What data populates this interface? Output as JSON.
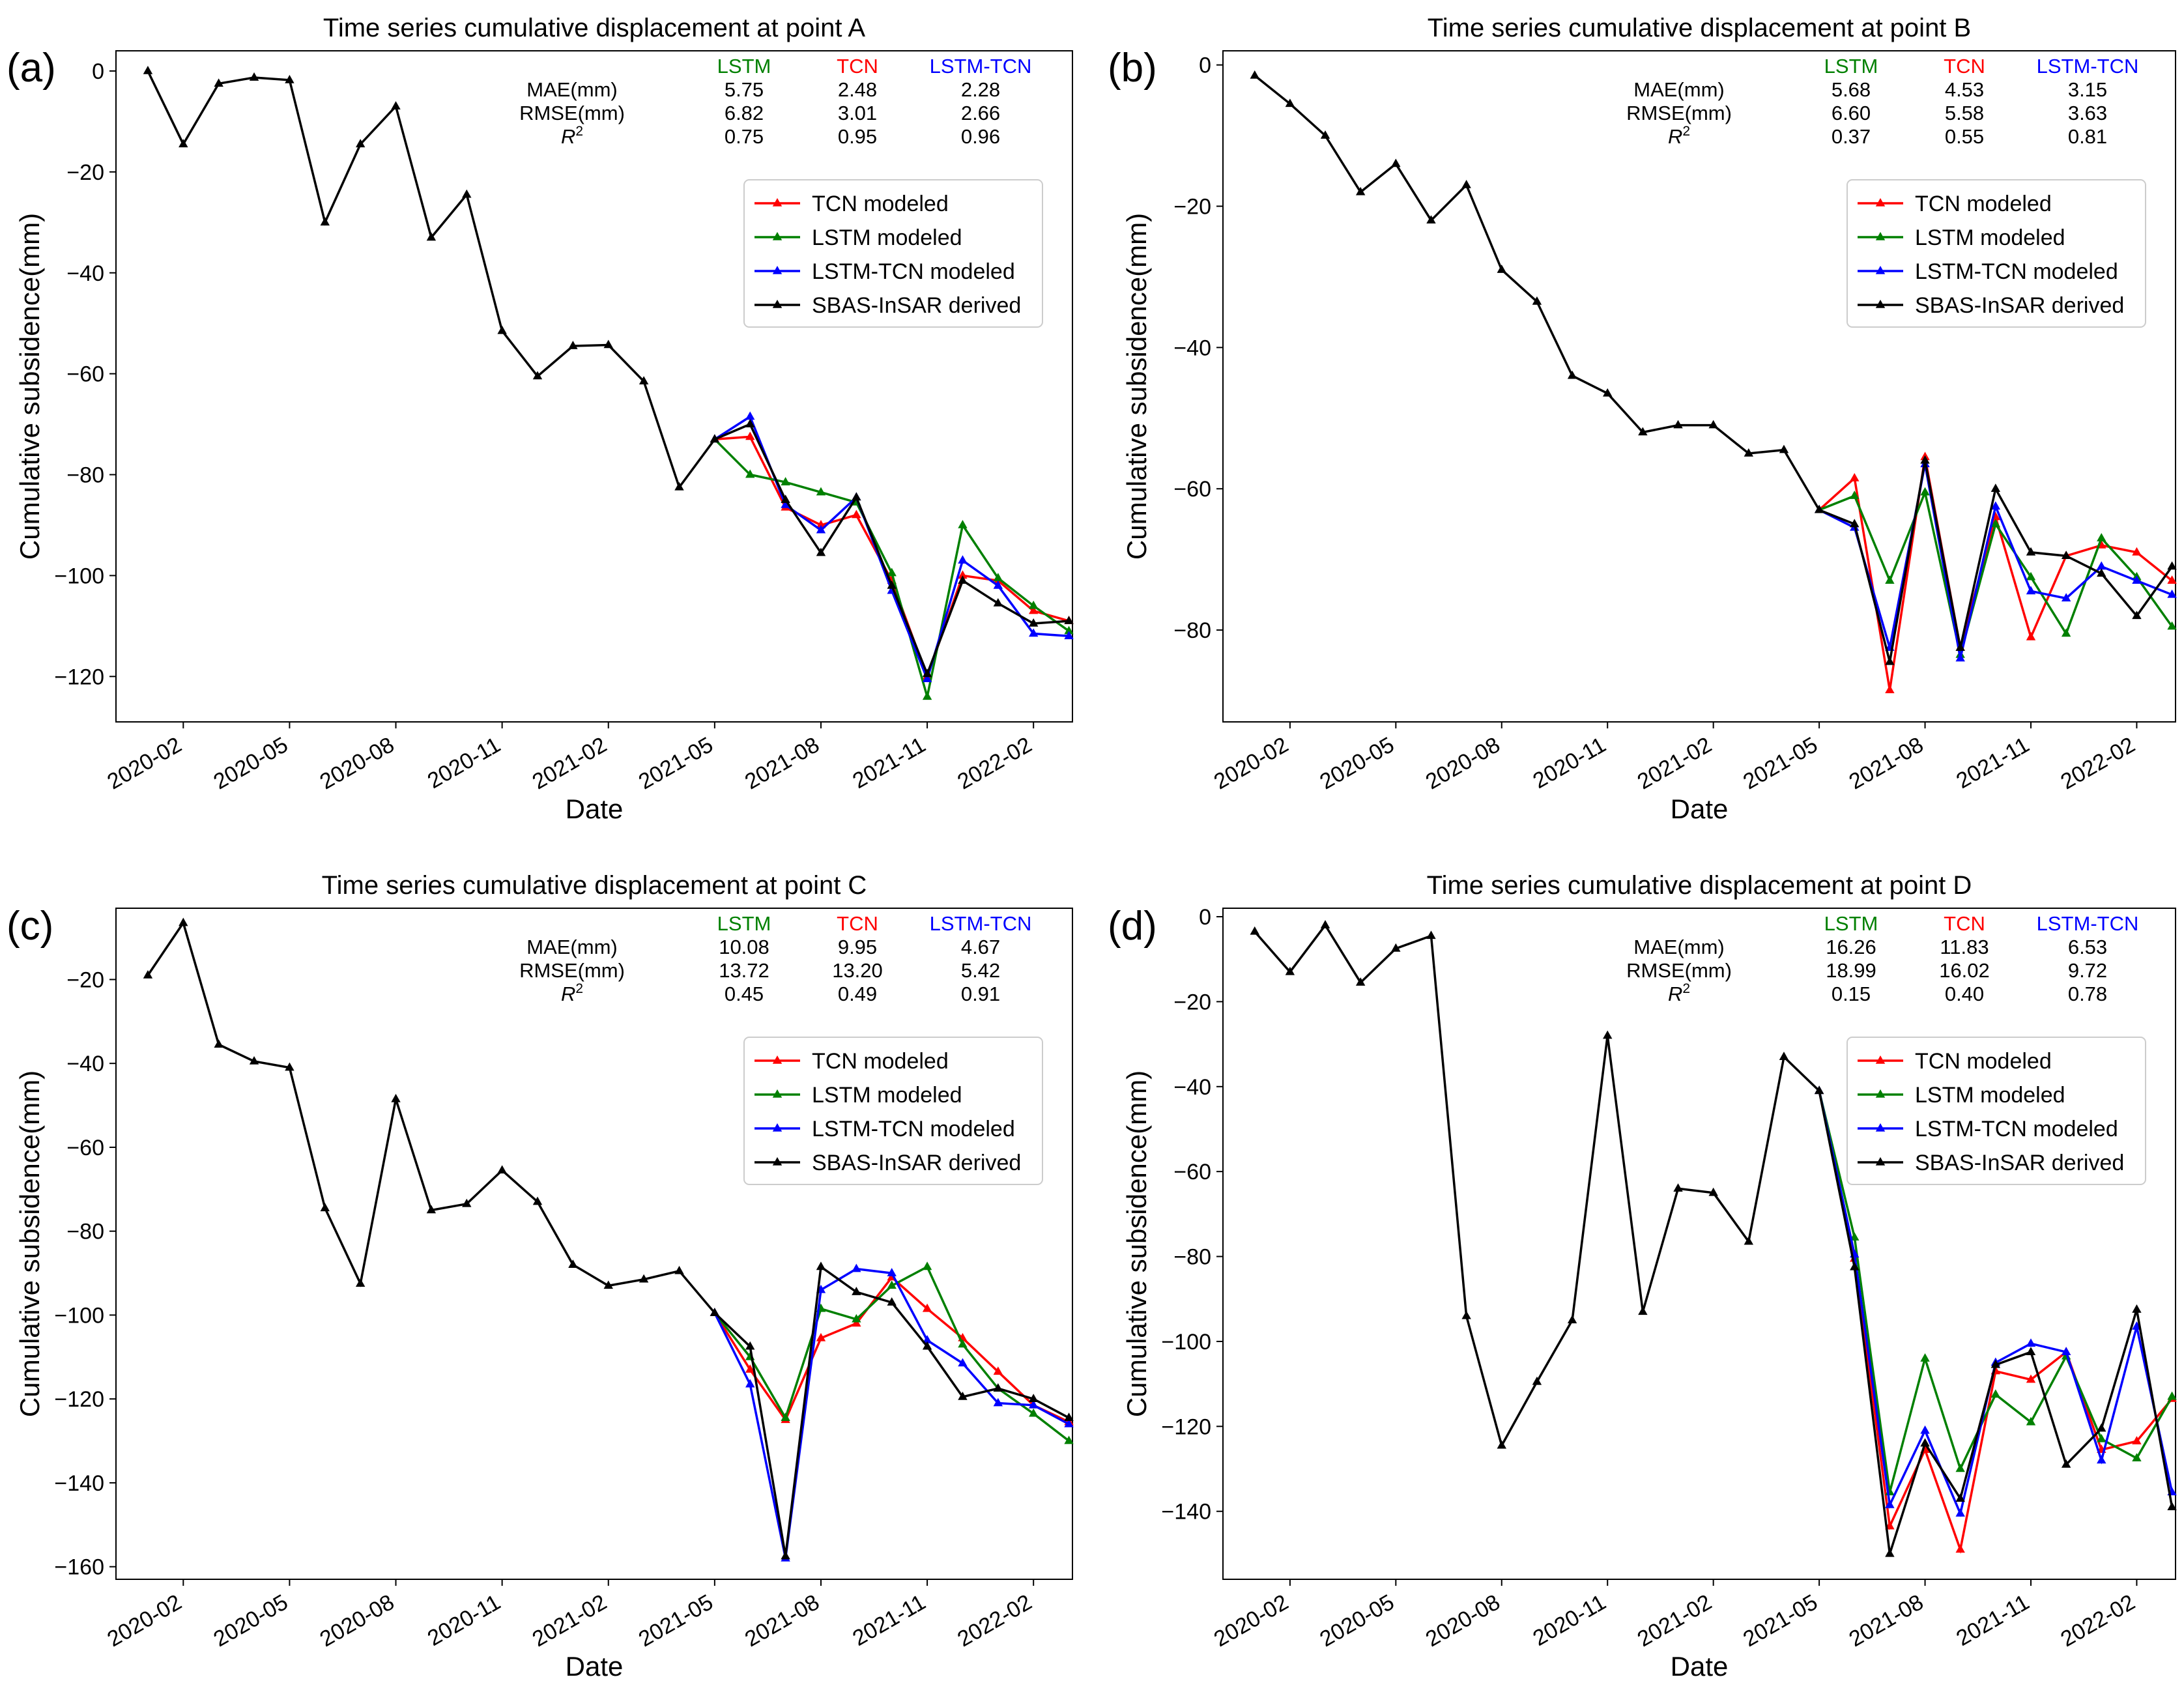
{
  "chart_data": [
    {
      "type": "line",
      "panel_label": "(a)",
      "title": "Time series cumulative displacement at point A",
      "xlabel": "Date",
      "ylabel": "Cumulative subsidence(mm)",
      "xlim": [
        -0.9,
        26.1
      ],
      "ylim": [
        -129,
        4
      ],
      "yticks": [
        0,
        -20,
        -40,
        -60,
        -80,
        -100,
        -120
      ],
      "xtick_labels": [
        "2020-02",
        "2020-05",
        "2020-08",
        "2020-11",
        "2021-02",
        "2021-05",
        "2021-08",
        "2021-11",
        "2022-02"
      ],
      "xtick_positions": [
        1,
        4,
        7,
        10,
        13,
        16,
        19,
        22,
        25
      ],
      "metrics": {
        "headers": [
          "LSTM",
          "TCN",
          "LSTM-TCN"
        ],
        "rows": [
          {
            "label": "MAE(mm)",
            "values": [
              "5.75",
              "2.48",
              "2.28"
            ]
          },
          {
            "label": "RMSE(mm)",
            "values": [
              "6.82",
              "3.01",
              "2.66"
            ]
          },
          {
            "label": "R",
            "label_sup": "2",
            "values": [
              "0.75",
              "0.95",
              "0.96"
            ]
          }
        ]
      },
      "legend": [
        "TCN modeled",
        "LSTM modeled",
        "LSTM-TCN modeled",
        "SBAS-InSAR derived"
      ],
      "series": [
        {
          "name": "SBAS-InSAR derived",
          "color": "#000000",
          "x_start": 0,
          "values": [
            0,
            -14.5,
            -2.5,
            -1.3,
            -1.8,
            -30,
            -14.5,
            -7,
            -33,
            -24.5,
            -51.5,
            -60.5,
            -54.5,
            -54.3,
            -61.5,
            -82.5,
            -73,
            -70,
            -85,
            -95.5,
            -84.5,
            -102,
            -119.5,
            -101,
            -105.5,
            -109.5,
            -109
          ]
        },
        {
          "name": "TCN modeled",
          "color": "#ff0000",
          "x_start": 16,
          "values": [
            -73,
            -72.5,
            -86.5,
            -90,
            -88,
            -101,
            -120,
            -100,
            -101,
            -107,
            -109
          ]
        },
        {
          "name": "LSTM modeled",
          "color": "#008000",
          "x_start": 16,
          "values": [
            -73,
            -80,
            -81.5,
            -83.5,
            -85.5,
            -99.5,
            -124,
            -90,
            -100.5,
            -106,
            -111
          ]
        },
        {
          "name": "LSTM-TCN modeled",
          "color": "#0000ff",
          "x_start": 16,
          "values": [
            -73,
            -68.5,
            -86,
            -91,
            -84.5,
            -103,
            -120.5,
            -97,
            -102,
            -111.5,
            -112
          ]
        }
      ]
    },
    {
      "type": "line",
      "panel_label": "(b)",
      "title": "Time series cumulative displacement at point B",
      "xlabel": "Date",
      "ylabel": "Cumulative subsidence(mm)",
      "xlim": [
        -0.9,
        26.1
      ],
      "ylim": [
        -93,
        2
      ],
      "yticks": [
        0,
        -20,
        -40,
        -60,
        -80
      ],
      "xtick_labels": [
        "2020-02",
        "2020-05",
        "2020-08",
        "2020-11",
        "2021-02",
        "2021-05",
        "2021-08",
        "2021-11",
        "2022-02"
      ],
      "xtick_positions": [
        1,
        4,
        7,
        10,
        13,
        16,
        19,
        22,
        25
      ],
      "metrics": {
        "headers": [
          "LSTM",
          "TCN",
          "LSTM-TCN"
        ],
        "rows": [
          {
            "label": "MAE(mm)",
            "values": [
              "5.68",
              "4.53",
              "3.15"
            ]
          },
          {
            "label": "RMSE(mm)",
            "values": [
              "6.60",
              "5.58",
              "3.63"
            ]
          },
          {
            "label": "R",
            "label_sup": "2",
            "values": [
              "0.37",
              "0.55",
              "0.81"
            ]
          }
        ]
      },
      "legend": [
        "TCN modeled",
        "LSTM modeled",
        "LSTM-TCN modeled",
        "SBAS-InSAR derived"
      ],
      "series": [
        {
          "name": "SBAS-InSAR derived",
          "color": "#000000",
          "x_start": 0,
          "values": [
            -1.5,
            -5.5,
            -10,
            -18,
            -14,
            -22,
            -17,
            -29,
            -33.5,
            -44,
            -46.5,
            -52,
            -51,
            -51,
            -55,
            -54.5,
            -63,
            -65,
            -84.5,
            -56,
            -82.5,
            -60,
            -69,
            -69.5,
            -72,
            -78,
            -71
          ]
        },
        {
          "name": "TCN modeled",
          "color": "#ff0000",
          "x_start": 16,
          "values": [
            -63,
            -58.5,
            -88.5,
            -55.5,
            -82.5,
            -64,
            -81,
            -69.5,
            -68,
            -69,
            -73
          ]
        },
        {
          "name": "LSTM modeled",
          "color": "#008000",
          "x_start": 16,
          "values": [
            -63,
            -61,
            -73,
            -60.5,
            -83.5,
            -65,
            -72.5,
            -80.5,
            -67,
            -72.5,
            -79.5
          ]
        },
        {
          "name": "LSTM-TCN modeled",
          "color": "#0000ff",
          "x_start": 16,
          "values": [
            -63,
            -65.5,
            -82.5,
            -56.5,
            -84,
            -62.5,
            -74.5,
            -75.5,
            -71,
            -73,
            -75
          ]
        }
      ]
    },
    {
      "type": "line",
      "panel_label": "(c)",
      "title": "Time series cumulative displacement at point C",
      "xlabel": "Date",
      "ylabel": "Cumulative subsidence(mm)",
      "xlim": [
        -0.9,
        26.1
      ],
      "ylim": [
        -163,
        -3
      ],
      "yticks": [
        -20,
        -40,
        -60,
        -80,
        -100,
        -120,
        -140,
        -160
      ],
      "xtick_labels": [
        "2020-02",
        "2020-05",
        "2020-08",
        "2020-11",
        "2021-02",
        "2021-05",
        "2021-08",
        "2021-11",
        "2022-02"
      ],
      "xtick_positions": [
        1,
        4,
        7,
        10,
        13,
        16,
        19,
        22,
        25
      ],
      "metrics": {
        "headers": [
          "LSTM",
          "TCN",
          "LSTM-TCN"
        ],
        "rows": [
          {
            "label": "MAE(mm)",
            "values": [
              "10.08",
              "9.95",
              "4.67"
            ]
          },
          {
            "label": "RMSE(mm)",
            "values": [
              "13.72",
              "13.20",
              "5.42"
            ]
          },
          {
            "label": "R",
            "label_sup": "2",
            "values": [
              "0.45",
              "0.49",
              "0.91"
            ]
          }
        ]
      },
      "legend": [
        "TCN modeled",
        "LSTM modeled",
        "LSTM-TCN modeled",
        "SBAS-InSAR derived"
      ],
      "series": [
        {
          "name": "SBAS-InSAR derived",
          "color": "#000000",
          "x_start": 0,
          "values": [
            -19,
            -6.5,
            -35.5,
            -39.5,
            -41,
            -74.5,
            -92.5,
            -48.5,
            -75,
            -73.5,
            -65.5,
            -73,
            -88,
            -93,
            -91.5,
            -89.5,
            -99.5,
            -107.5,
            -157.5,
            -88.5,
            -94.5,
            -97,
            -107.5,
            -119.5,
            -117.5,
            -120,
            -124.5
          ]
        },
        {
          "name": "TCN modeled",
          "color": "#ff0000",
          "x_start": 16,
          "values": [
            -99.5,
            -113,
            -125,
            -105.5,
            -102,
            -91,
            -98.5,
            -105.5,
            -113.5,
            -121.5,
            -125.5
          ]
        },
        {
          "name": "LSTM modeled",
          "color": "#008000",
          "x_start": 16,
          "values": [
            -99.5,
            -110,
            -124.5,
            -98.5,
            -101,
            -93,
            -88.5,
            -107,
            -117.5,
            -123.5,
            -130
          ]
        },
        {
          "name": "LSTM-TCN modeled",
          "color": "#0000ff",
          "x_start": 16,
          "values": [
            -99.5,
            -116.5,
            -158,
            -94,
            -89,
            -90,
            -106,
            -111.5,
            -121,
            -121.5,
            -126
          ]
        }
      ]
    },
    {
      "type": "line",
      "panel_label": "(d)",
      "title": "Time series cumulative displacement at point D",
      "xlabel": "Date",
      "ylabel": "Cumulative subsidence(mm)",
      "xlim": [
        -0.9,
        26.1
      ],
      "ylim": [
        -156,
        2
      ],
      "yticks": [
        0,
        -20,
        -40,
        -60,
        -80,
        -100,
        -120,
        -140
      ],
      "xtick_labels": [
        "2020-02",
        "2020-05",
        "2020-08",
        "2020-11",
        "2021-02",
        "2021-05",
        "2021-08",
        "2021-11",
        "2022-02"
      ],
      "xtick_positions": [
        1,
        4,
        7,
        10,
        13,
        16,
        19,
        22,
        25
      ],
      "metrics": {
        "headers": [
          "LSTM",
          "TCN",
          "LSTM-TCN"
        ],
        "rows": [
          {
            "label": "MAE(mm)",
            "values": [
              "16.26",
              "11.83",
              "6.53"
            ]
          },
          {
            "label": "RMSE(mm)",
            "values": [
              "18.99",
              "16.02",
              "9.72"
            ]
          },
          {
            "label": "R",
            "label_sup": "2",
            "values": [
              "0.15",
              "0.40",
              "0.78"
            ]
          }
        ]
      },
      "legend": [
        "TCN modeled",
        "LSTM modeled",
        "LSTM-TCN modeled",
        "SBAS-InSAR derived"
      ],
      "series": [
        {
          "name": "SBAS-InSAR derived",
          "color": "#000000",
          "x_start": 0,
          "values": [
            -3.5,
            -13,
            -2,
            -15.5,
            -7.5,
            -4.5,
            -94,
            -124.5,
            -109.5,
            -95,
            -28,
            -93,
            -64,
            -65,
            -76.5,
            -33,
            -41,
            -82.5,
            -150,
            -124,
            -137,
            -105.5,
            -102.5,
            -129,
            -120.5,
            -92.5,
            -139
          ]
        },
        {
          "name": "TCN modeled",
          "color": "#ff0000",
          "x_start": 16,
          "values": [
            -41,
            -80.5,
            -143.5,
            -125.5,
            -149,
            -107,
            -109,
            -102.5,
            -125.5,
            -123.5,
            -113.5
          ]
        },
        {
          "name": "LSTM modeled",
          "color": "#008000",
          "x_start": 16,
          "values": [
            -41,
            -75.5,
            -135.5,
            -104,
            -130,
            -112.5,
            -119,
            -103.5,
            -123,
            -127.5,
            -113
          ]
        },
        {
          "name": "LSTM-TCN modeled",
          "color": "#0000ff",
          "x_start": 16,
          "values": [
            -41,
            -79.5,
            -138.5,
            -121,
            -140.5,
            -105,
            -100.5,
            -102.5,
            -128,
            -96.5,
            -135.5
          ]
        }
      ]
    }
  ]
}
